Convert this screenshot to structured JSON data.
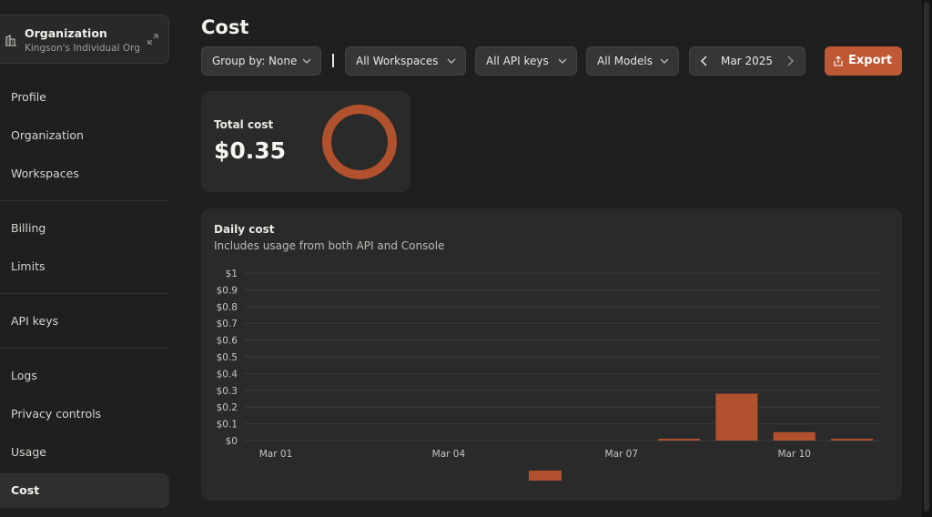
{
  "sidebar": {
    "org_title": "Organization",
    "org_subtitle": "Kingson's Individual Org",
    "items": [
      {
        "label": "Profile"
      },
      {
        "label": "Organization"
      },
      {
        "label": "Workspaces"
      },
      {
        "label": "Billing"
      },
      {
        "label": "Limits"
      },
      {
        "label": "API keys"
      },
      {
        "label": "Logs"
      },
      {
        "label": "Privacy controls"
      },
      {
        "label": "Usage"
      },
      {
        "label": "Cost",
        "active": true
      }
    ]
  },
  "header": {
    "title": "Cost",
    "filters": {
      "group_by": "Group by: None",
      "workspaces": "All Workspaces",
      "api_keys": "All API keys",
      "models": "All Models"
    },
    "month": "Mar 2025",
    "export_label": "Export"
  },
  "total": {
    "label": "Total cost",
    "value": "$0.35"
  },
  "daily": {
    "title": "Daily cost",
    "subtitle": "Includes usage from both API and Console"
  },
  "colors": {
    "accent": "#bf5834",
    "bar": "#b2512d",
    "background": "#1f1f1f",
    "card": "#2a2a2a"
  },
  "chart_data": {
    "type": "bar",
    "title": "Daily cost",
    "subtitle": "Includes usage from both API and Console",
    "y_ticks": [
      "$1",
      "$0.9",
      "$0.8",
      "$0.7",
      "$0.6",
      "$0.5",
      "$0.4",
      "$0.3",
      "$0.2",
      "$0.1",
      "$0"
    ],
    "ylim": [
      0,
      1
    ],
    "x_tick_labels": [
      "Mar 01",
      "Mar 04",
      "Mar 07",
      "Mar 10"
    ],
    "x_tick_days": [
      1,
      4,
      7,
      10
    ],
    "bars": [
      {
        "day": 8,
        "value": 0.01
      },
      {
        "day": 9,
        "value": 0.28
      },
      {
        "day": 10,
        "value": 0.05
      },
      {
        "day": 11,
        "value": 0.005
      }
    ],
    "grid": true
  }
}
